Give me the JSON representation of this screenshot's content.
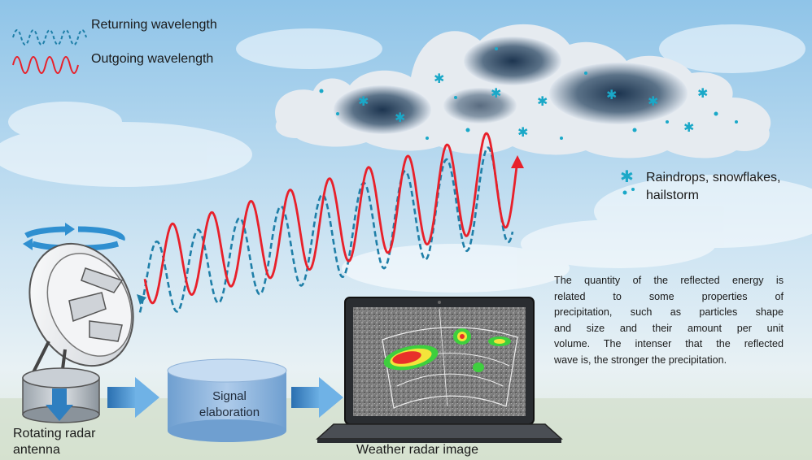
{
  "legend": {
    "returning": "Returning wavelength",
    "outgoing": "Outgoing wavelength"
  },
  "particles": {
    "line1": "Raindrops, snowflakes,",
    "line2": "hailstorm"
  },
  "explanation": {
    "lines": [
      "The quantity of the reflected energy is",
      "related to some properties of",
      "precipitation, such as particles shape",
      "and size and their amount per unit",
      "volume. The intenser that the reflected",
      "wave is, the stronger the precipitation."
    ]
  },
  "antenna": {
    "line1": "Rotating radar",
    "line2": "antenna"
  },
  "signal": {
    "line1": "Signal",
    "line2": "elaboration"
  },
  "radar_image": {
    "label": "Weather radar image"
  },
  "colors": {
    "outgoing_wave": "#e8202a",
    "returning_wave": "#1f7fa8",
    "arrow_blue": "#2f7fc0",
    "snowflake": "#1aa8c8"
  }
}
